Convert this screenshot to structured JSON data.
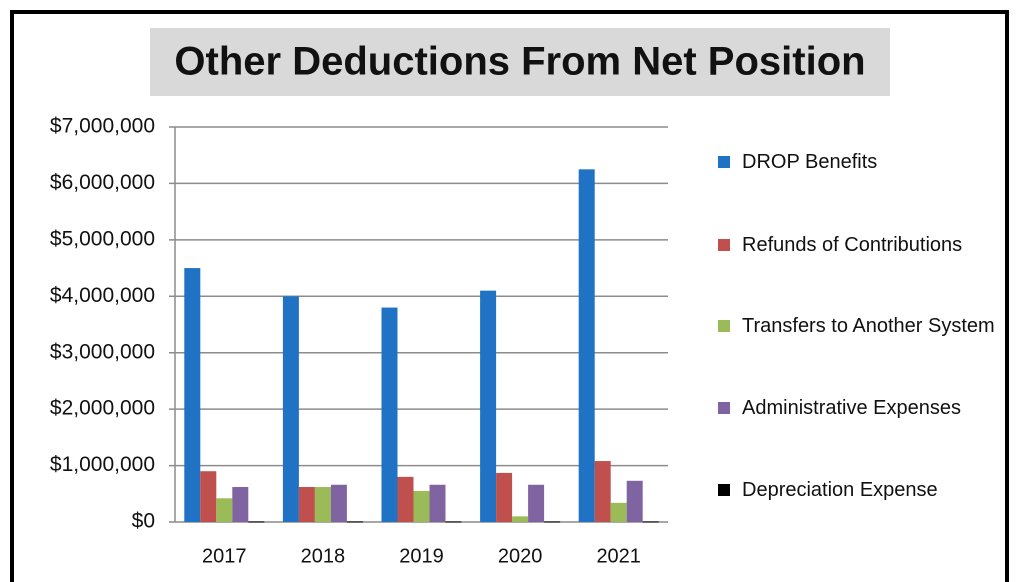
{
  "chart_data": {
    "type": "bar",
    "title": "Other Deductions From Net Position",
    "categories": [
      "2017",
      "2018",
      "2019",
      "2020",
      "2021"
    ],
    "series": [
      {
        "name": "DROP Benefits",
        "color": "#1f72c4",
        "values": [
          4500000,
          4000000,
          3800000,
          4100000,
          6250000
        ]
      },
      {
        "name": "Refunds of Contributions",
        "color": "#c0504d",
        "values": [
          900000,
          620000,
          800000,
          870000,
          1080000
        ]
      },
      {
        "name": "Transfers to Another System",
        "color": "#9bbb59",
        "values": [
          420000,
          620000,
          550000,
          100000,
          340000
        ]
      },
      {
        "name": "Administrative Expenses",
        "color": "#8064a2",
        "values": [
          620000,
          660000,
          660000,
          660000,
          730000
        ]
      },
      {
        "name": "Depreciation Expense",
        "color": "#000000",
        "values": [
          10000,
          10000,
          10000,
          10000,
          10000
        ]
      }
    ],
    "ylim": [
      0,
      7000000
    ],
    "yticks": [
      {
        "value": 0,
        "label": "$0"
      },
      {
        "value": 1000000,
        "label": "$1,000,000"
      },
      {
        "value": 2000000,
        "label": "$2,000,000"
      },
      {
        "value": 3000000,
        "label": "$3,000,000"
      },
      {
        "value": 4000000,
        "label": "$4,000,000"
      },
      {
        "value": 5000000,
        "label": "$5,000,000"
      },
      {
        "value": 6000000,
        "label": "$6,000,000"
      },
      {
        "value": 7000000,
        "label": "$7,000,000"
      }
    ],
    "grid": true,
    "legend": "right"
  }
}
